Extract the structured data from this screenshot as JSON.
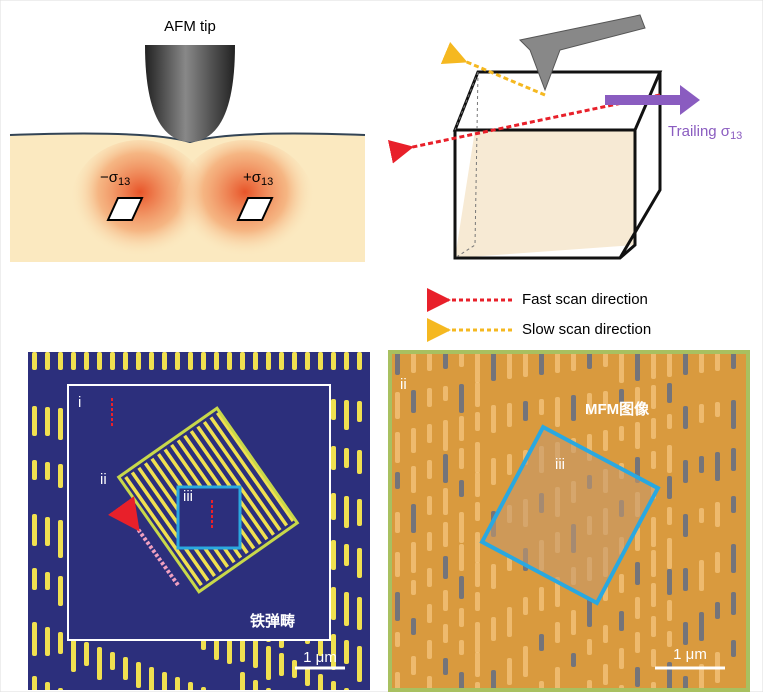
{
  "top_left": {
    "tip_label": "AFM tip",
    "left_stress": {
      "symbol": "−σ",
      "subscript": "13"
    },
    "right_stress": {
      "symbol": "+σ",
      "subscript": "13"
    }
  },
  "top_right": {
    "trailing": {
      "text": "Trailing σ",
      "subscript": "13"
    }
  },
  "legend": {
    "fast": "Fast scan direction",
    "slow": "Slow scan direction"
  },
  "bottom_left": {
    "region_i": "i",
    "region_ii": "ii",
    "region_iii": "iii",
    "label": "铁弹畴",
    "scale": "1 μm"
  },
  "bottom_right": {
    "region_ii": "ii",
    "region_iii": "iii",
    "label": "MFM图像",
    "scale": "1 μm"
  }
}
